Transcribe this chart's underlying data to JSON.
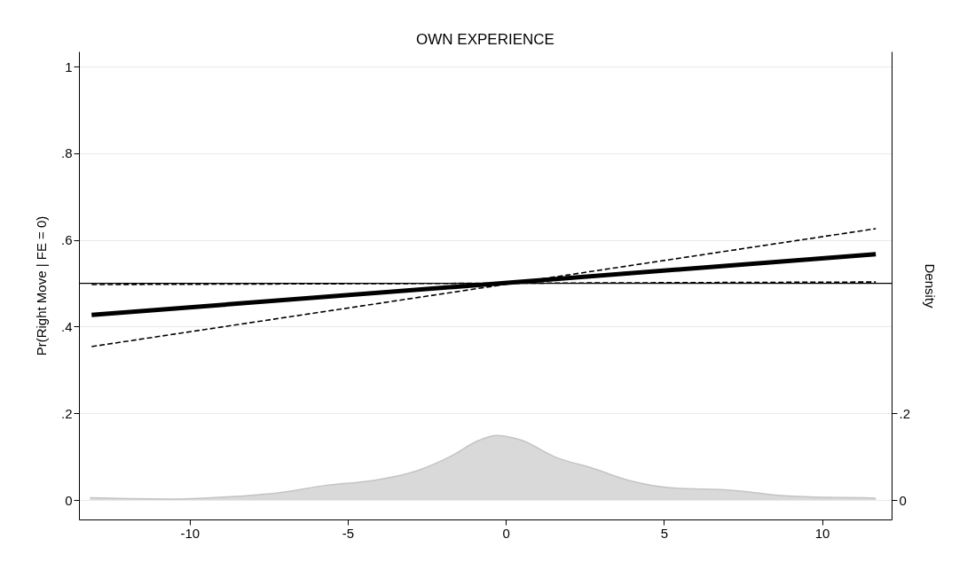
{
  "chart_data": {
    "type": "line",
    "title": "OWN EXPERIENCE",
    "ylabel": "Pr(Right Move | FE = 0)",
    "y2label": "Density",
    "xlim": [
      -13.5,
      12.2
    ],
    "xticks": [
      -10,
      -5,
      0,
      5,
      10
    ],
    "ylim": [
      -0.045,
      1.035
    ],
    "yticks": [
      0,
      {
        "value": 0.2,
        "label": ".2"
      },
      {
        "value": 0.4,
        "label": ".4"
      },
      {
        "value": 0.6,
        "label": ".6"
      },
      {
        "value": 0.8,
        "label": ".8"
      },
      1
    ],
    "y2lim": [
      -0.045,
      1.035
    ],
    "y2ticks": [
      0,
      {
        "value": 0.2,
        "label": ".2"
      }
    ],
    "grid": "y",
    "series": [
      {
        "type": "area",
        "axis": "y2",
        "color": "#d9d9d9",
        "x": [
          -13.15,
          -10.45,
          -8.8,
          -7.16,
          -5.67,
          -4.19,
          -2.87,
          -1.71,
          -0.87,
          -0.3,
          0.45,
          1.6,
          2.75,
          3.9,
          5.2,
          7.2,
          8.7,
          10.2,
          11.35,
          11.7
        ],
        "values": [
          0.005,
          0.002,
          0.007,
          0.017,
          0.034,
          0.045,
          0.066,
          0.102,
          0.137,
          0.149,
          0.139,
          0.098,
          0.073,
          0.045,
          0.028,
          0.022,
          0.01,
          0.006,
          0.005,
          0.004
        ]
      },
      {
        "color": "#000000",
        "line_style": "dashed",
        "x": [
          -13.1,
          11.7
        ],
        "values": [
          0.354,
          0.626
        ]
      },
      {
        "color": "#000000",
        "line_style": "dashed",
        "x": [
          -13.1,
          11.7
        ],
        "values": [
          0.497,
          0.503
        ]
      },
      {
        "color": "#000000",
        "line_style": "solid",
        "x": [
          -13.1,
          11.7
        ],
        "values": [
          0.427,
          0.567
        ]
      }
    ],
    "ref_lines": [
      {
        "axis": "y",
        "value": 0.5,
        "color": "#000000"
      }
    ]
  }
}
